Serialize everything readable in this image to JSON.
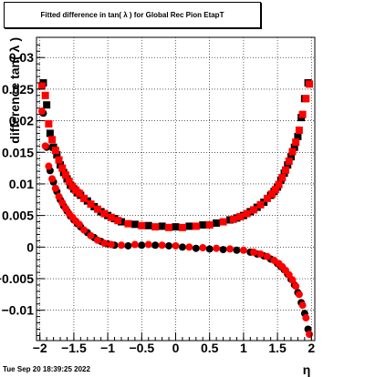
{
  "chart_data": {
    "type": "scatter",
    "title": "Fitted difference in tan( λ ) for Global Rec Pion EtapT",
    "xlabel": "η",
    "ylabel": "difference tan( λ )",
    "xlim": [
      -2.05,
      2.05
    ],
    "ylim": [
      -0.0148,
      0.0332
    ],
    "x_ticks": [
      "−2",
      "−1.5",
      "−1",
      "−0.5",
      "0",
      "0.5",
      "1",
      "1.5",
      "2"
    ],
    "x_tick_values": [
      -2,
      -1.5,
      -1,
      -0.5,
      0,
      0.5,
      1,
      1.5,
      2
    ],
    "y_ticks": [
      "−0.01",
      "−0.005",
      "0",
      "0.005",
      "0.01",
      "0.015",
      "0.02",
      "0.025",
      "0.03"
    ],
    "y_tick_values": [
      -0.01,
      -0.005,
      0,
      0.005,
      0.01,
      0.015,
      0.02,
      0.025,
      0.03
    ],
    "grid": true,
    "legend": false,
    "series": [
      {
        "marker": "square",
        "color": "#000000",
        "x": [
          -1.95,
          -1.9,
          -1.85,
          -1.8,
          -1.75,
          -1.7,
          -1.65,
          -1.6,
          -1.55,
          -1.5,
          -1.45,
          -1.4,
          -1.3,
          -1.2,
          -1.1,
          -1.0,
          -0.9,
          -0.8,
          -0.6,
          -0.4,
          -0.2,
          0.0,
          0.2,
          0.4,
          0.6,
          0.8,
          0.9,
          1.0,
          1.1,
          1.2,
          1.3,
          1.4,
          1.45,
          1.5,
          1.55,
          1.6,
          1.65,
          1.7,
          1.75,
          1.8,
          1.85,
          1.9,
          1.95
        ],
        "y": [
          0.026,
          0.0225,
          0.018,
          0.0158,
          0.0146,
          0.013,
          0.0118,
          0.0108,
          0.0098,
          0.0092,
          0.0086,
          0.0082,
          0.0073,
          0.0064,
          0.0056,
          0.005,
          0.0045,
          0.004,
          0.0036,
          0.0034,
          0.0033,
          0.0032,
          0.0033,
          0.0035,
          0.0038,
          0.0043,
          0.0046,
          0.005,
          0.0056,
          0.0063,
          0.0071,
          0.0082,
          0.0088,
          0.0095,
          0.0106,
          0.0117,
          0.013,
          0.0143,
          0.0158,
          0.0175,
          0.0205,
          0.0235,
          0.026
        ]
      },
      {
        "marker": "square",
        "color": "#ff0000",
        "x": [
          -1.97,
          -1.92,
          -1.87,
          -1.82,
          -1.77,
          -1.72,
          -1.67,
          -1.62,
          -1.57,
          -1.52,
          -1.47,
          -1.42,
          -1.35,
          -1.25,
          -1.15,
          -1.05,
          -0.95,
          -0.85,
          -0.7,
          -0.5,
          -0.3,
          -0.1,
          0.1,
          0.3,
          0.5,
          0.7,
          0.85,
          0.95,
          1.05,
          1.15,
          1.25,
          1.35,
          1.42,
          1.47,
          1.52,
          1.57,
          1.62,
          1.67,
          1.72,
          1.77,
          1.82,
          1.87,
          1.92,
          1.97
        ],
        "y": [
          0.0255,
          0.024,
          0.0195,
          0.017,
          0.0153,
          0.0138,
          0.0125,
          0.0114,
          0.0104,
          0.0096,
          0.009,
          0.0085,
          0.0077,
          0.0068,
          0.006,
          0.0053,
          0.0047,
          0.0042,
          0.0037,
          0.0034,
          0.0032,
          0.0031,
          0.0031,
          0.0033,
          0.0035,
          0.004,
          0.0044,
          0.0048,
          0.0053,
          0.0059,
          0.0067,
          0.0077,
          0.0084,
          0.0091,
          0.0099,
          0.011,
          0.0122,
          0.0136,
          0.0151,
          0.0166,
          0.0185,
          0.021,
          0.0235,
          0.0258
        ]
      },
      {
        "marker": "circle",
        "color": "#000000",
        "x": [
          -1.95,
          -1.9,
          -1.85,
          -1.8,
          -1.75,
          -1.7,
          -1.65,
          -1.6,
          -1.55,
          -1.5,
          -1.45,
          -1.4,
          -1.3,
          -1.2,
          -1.1,
          -1.0,
          -0.9,
          -0.7,
          -0.5,
          -0.3,
          -0.1,
          0.1,
          0.3,
          0.5,
          0.7,
          0.9,
          1.1,
          1.2,
          1.3,
          1.4,
          1.5,
          1.55,
          1.6,
          1.65,
          1.7,
          1.75,
          1.8,
          1.85,
          1.9,
          1.95
        ],
        "y": [
          0.0212,
          0.0158,
          0.0121,
          0.0103,
          0.0088,
          0.0075,
          0.0065,
          0.0057,
          0.0049,
          0.0043,
          0.0037,
          0.0032,
          0.0023,
          0.0015,
          0.0009,
          0.0005,
          0.0003,
          0.0002,
          0.0003,
          0.0003,
          0.0002,
          0.0,
          -0.0002,
          -0.0003,
          -0.0004,
          -0.0005,
          -0.0008,
          -0.0011,
          -0.0014,
          -0.0019,
          -0.0026,
          -0.0031,
          -0.0036,
          -0.0043,
          -0.0051,
          -0.006,
          -0.0072,
          -0.0088,
          -0.0105,
          -0.013
        ]
      },
      {
        "marker": "circle",
        "color": "#ff0000",
        "x": [
          -1.97,
          -1.92,
          -1.87,
          -1.82,
          -1.77,
          -1.72,
          -1.67,
          -1.62,
          -1.57,
          -1.52,
          -1.47,
          -1.42,
          -1.35,
          -1.25,
          -1.15,
          -1.05,
          -0.95,
          -0.8,
          -0.6,
          -0.4,
          -0.2,
          0.0,
          0.2,
          0.4,
          0.6,
          0.8,
          1.0,
          1.15,
          1.25,
          1.35,
          1.45,
          1.52,
          1.57,
          1.62,
          1.67,
          1.72,
          1.77,
          1.82,
          1.87,
          1.92,
          1.97
        ],
        "y": [
          0.0215,
          0.016,
          0.0128,
          0.0108,
          0.0093,
          0.008,
          0.007,
          0.0061,
          0.0053,
          0.0047,
          0.0041,
          0.0036,
          0.0027,
          0.0018,
          0.0011,
          0.0006,
          0.0004,
          0.0003,
          0.0004,
          0.0004,
          0.0003,
          0.0002,
          0.0,
          -0.0001,
          -0.0002,
          -0.0003,
          -0.0005,
          -0.0008,
          -0.0011,
          -0.0015,
          -0.0021,
          -0.0026,
          -0.0031,
          -0.0037,
          -0.0044,
          -0.0052,
          -0.0062,
          -0.0075,
          -0.0092,
          -0.0112,
          -0.0138
        ]
      }
    ]
  },
  "footer": {
    "timestamp": "Tue Sep 20 18:39:25 2022"
  }
}
